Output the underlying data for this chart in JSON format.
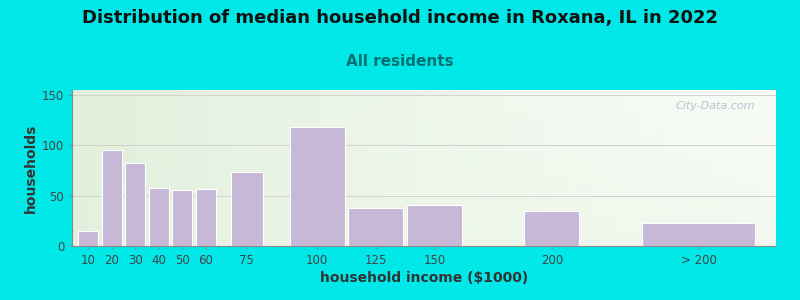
{
  "title": "Distribution of median household income in Roxana, IL in 2022",
  "subtitle": "All residents",
  "xlabel": "household income ($1000)",
  "ylabel": "households",
  "bar_labels": [
    "10",
    "20",
    "30",
    "40",
    "50",
    "60",
    "75",
    "100",
    "125",
    "150",
    "200",
    "> 200"
  ],
  "bar_values": [
    15,
    95,
    82,
    58,
    56,
    57,
    74,
    118,
    38,
    41,
    35,
    23
  ],
  "bar_widths": [
    10,
    10,
    10,
    10,
    10,
    10,
    15,
    25,
    25,
    25,
    25,
    50
  ],
  "bar_lefts": [
    10,
    20,
    30,
    40,
    50,
    60,
    75,
    100,
    125,
    150,
    200,
    250
  ],
  "bar_color": "#c8b8d8",
  "bar_edge_color": "#ffffff",
  "ylim": [
    0,
    155
  ],
  "yticks": [
    0,
    50,
    100,
    150
  ],
  "xlim_left": 8,
  "xlim_right": 308,
  "bg_outer": "#00e8e8",
  "bg_plot": "#eaf5e4",
  "title_fontsize": 13,
  "subtitle_fontsize": 11,
  "subtitle_color": "#007070",
  "axis_label_fontsize": 10,
  "watermark_text": "City-Data.com",
  "watermark_color": "#b0b8c8",
  "title_color": "#111111"
}
